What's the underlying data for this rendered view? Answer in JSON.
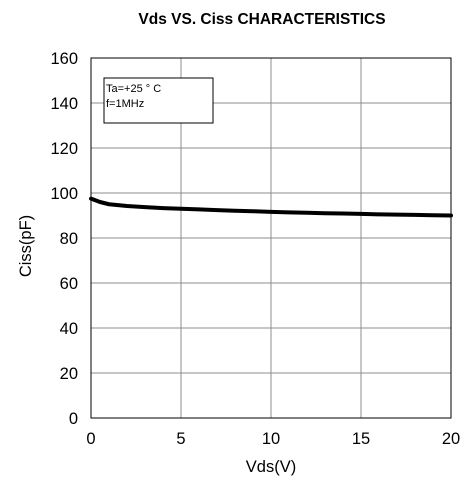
{
  "chart_data": {
    "type": "line",
    "title": "Vds  VS. Ciss CHARACTERISTICS",
    "xlabel": "Vds(V)",
    "ylabel": "Ciss(pF)",
    "xlim": [
      0,
      20
    ],
    "ylim": [
      0,
      160
    ],
    "xticks": [
      0,
      5,
      10,
      15,
      20
    ],
    "yticks": [
      0,
      20,
      40,
      60,
      80,
      100,
      120,
      140,
      160
    ],
    "grid": true,
    "annotation": [
      "Ta=+25 ° C",
      "f=1MHz"
    ],
    "series": [
      {
        "x": [
          0,
          0.5,
          1,
          2,
          3,
          4,
          5,
          6,
          7,
          8,
          9,
          10,
          11,
          12,
          13,
          14,
          15,
          16,
          17,
          18,
          19,
          20
        ],
        "values": [
          97.5,
          96,
          95,
          94.2,
          93.7,
          93.3,
          93,
          92.7,
          92.4,
          92.1,
          91.9,
          91.6,
          91.4,
          91.2,
          91.0,
          90.9,
          90.7,
          90.5,
          90.4,
          90.3,
          90.1,
          90
        ],
        "color": "#000000"
      }
    ]
  }
}
